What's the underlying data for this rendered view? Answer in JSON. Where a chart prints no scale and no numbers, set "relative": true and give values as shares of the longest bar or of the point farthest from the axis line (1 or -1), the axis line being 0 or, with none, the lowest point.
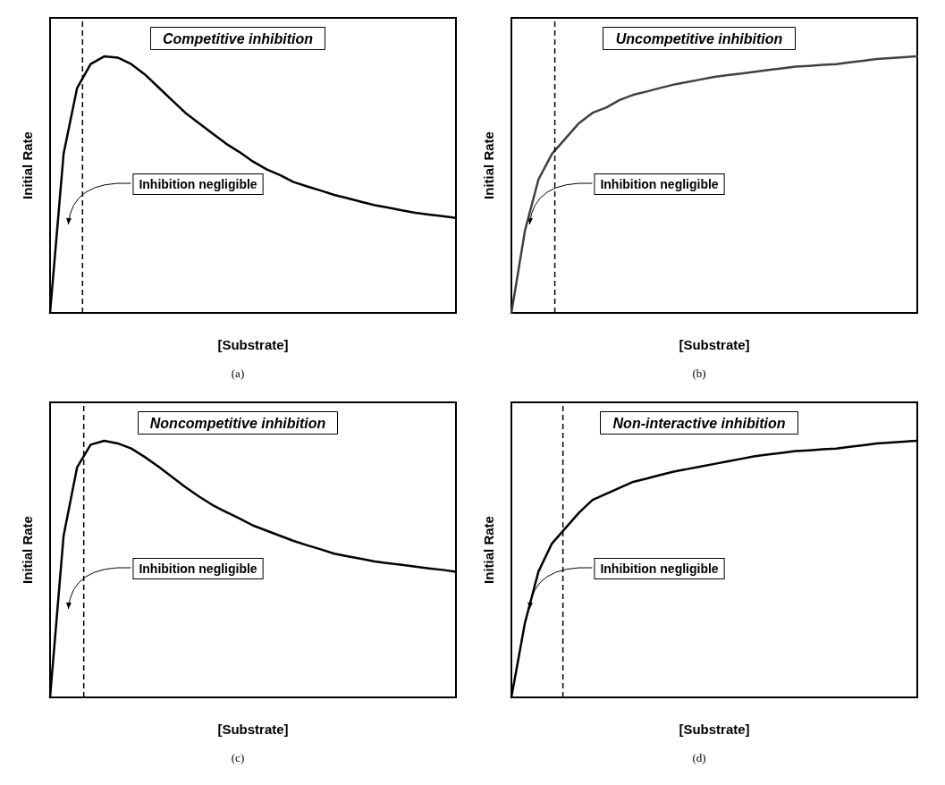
{
  "chart_data": [
    {
      "type": "line",
      "title": "Competitive inhibition",
      "xlabel": "[Substrate]",
      "ylabel": "Initial Rate",
      "relative": true,
      "marker": "none",
      "categories": [
        null,
        null,
        null,
        null,
        null,
        null,
        null,
        null,
        null,
        null,
        null,
        null,
        null,
        null,
        null,
        null,
        null,
        null,
        null,
        null,
        null,
        null,
        null,
        null,
        null,
        null,
        null,
        null,
        null,
        null,
        null
      ],
      "series": [
        {
          "color": "#000000",
          "values": [
            0,
            0.62,
            0.877,
            0.97,
            1,
            0.995,
            0.97,
            0.93,
            0.88,
            0.83,
            0.78,
            0.74,
            0.7,
            0.66,
            0.627,
            0.59,
            0.56,
            0.537,
            0.51,
            0.493,
            0.477,
            0.46,
            0.447,
            0.433,
            0.42,
            0.41,
            0.4,
            0.39,
            0.383,
            0.377,
            0.37
          ]
        }
      ],
      "annotations": [
        "Inhibition negligible",
        "(a)"
      ]
    },
    {
      "type": "line",
      "title": "Uncompetitive inhibition",
      "xlabel": "[Substrate]",
      "ylabel": "Initial Rate",
      "relative": true,
      "marker": "none",
      "categories": [
        null,
        null,
        null,
        null,
        null,
        null,
        null,
        null,
        null,
        null,
        null,
        null,
        null,
        null,
        null,
        null,
        null,
        null,
        null,
        null,
        null,
        null,
        null,
        null,
        null,
        null,
        null,
        null,
        null,
        null,
        null
      ],
      "series": [
        {
          "color": "#404040",
          "values": [
            0,
            0.32,
            0.52,
            0.62,
            0.68,
            0.74,
            0.78,
            0.8,
            0.83,
            0.85,
            0.863,
            0.877,
            0.89,
            0.9,
            0.91,
            0.92,
            0.927,
            0.933,
            0.94,
            0.947,
            0.953,
            0.96,
            0.963,
            0.967,
            0.97,
            0.977,
            0.983,
            0.99,
            0.993,
            0.997,
            1
          ]
        }
      ],
      "annotations": [
        "Inhibition negligible",
        "(b)"
      ]
    },
    {
      "type": "line",
      "title": "Noncompetitive inhibition",
      "xlabel": "[Substrate]",
      "ylabel": "Initial Rate",
      "relative": true,
      "marker": "none",
      "categories": [
        null,
        null,
        null,
        null,
        null,
        null,
        null,
        null,
        null,
        null,
        null,
        null,
        null,
        null,
        null,
        null,
        null,
        null,
        null,
        null,
        null,
        null,
        null,
        null,
        null,
        null,
        null,
        null,
        null,
        null,
        null
      ],
      "series": [
        {
          "color": "#000000",
          "values": [
            0,
            0.63,
            0.897,
            0.985,
            1,
            0.99,
            0.97,
            0.937,
            0.9,
            0.86,
            0.82,
            0.783,
            0.75,
            0.723,
            0.697,
            0.67,
            0.65,
            0.63,
            0.61,
            0.593,
            0.577,
            0.56,
            0.55,
            0.54,
            0.53,
            0.523,
            0.517,
            0.51,
            0.503,
            0.497,
            0.49
          ]
        }
      ],
      "annotations": [
        "Inhibition negligible",
        "(c)"
      ]
    },
    {
      "type": "line",
      "title": "Non-interactive inhibition",
      "xlabel": "[Substrate]",
      "ylabel": "Initial Rate",
      "relative": true,
      "marker": "none",
      "categories": [
        null,
        null,
        null,
        null,
        null,
        null,
        null,
        null,
        null,
        null,
        null,
        null,
        null,
        null,
        null,
        null,
        null,
        null,
        null,
        null,
        null,
        null,
        null,
        null,
        null,
        null,
        null,
        null,
        null,
        null,
        null
      ],
      "series": [
        {
          "color": "#000000",
          "values": [
            0,
            0.29,
            0.49,
            0.6,
            0.66,
            0.72,
            0.77,
            0.793,
            0.817,
            0.84,
            0.853,
            0.867,
            0.88,
            0.89,
            0.9,
            0.91,
            0.92,
            0.93,
            0.94,
            0.947,
            0.953,
            0.96,
            0.963,
            0.967,
            0.97,
            0.977,
            0.983,
            0.99,
            0.993,
            0.997,
            1
          ]
        }
      ],
      "annotations": [
        "Inhibition negligible",
        "(d)"
      ]
    }
  ]
}
